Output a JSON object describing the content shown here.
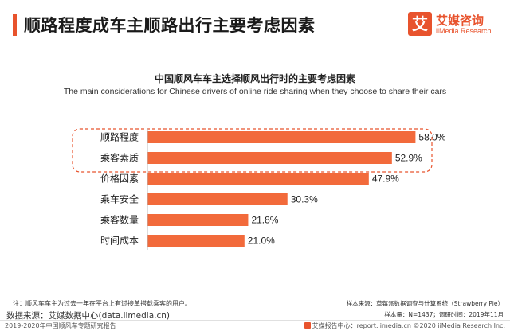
{
  "header": {
    "title": "顺路程度成车主顺路出行主要考虑因素",
    "logo_mark": "艾",
    "logo_cn": "艾媒咨询",
    "logo_en": "iiMedia Research",
    "accent_color": "#e8532d"
  },
  "chart_data": {
    "type": "bar",
    "orientation": "horizontal",
    "title": "中国顺风车车主选择顺风出行时的主要考虑因素",
    "subtitle": "The main considerations for Chinese drivers of online ride sharing  when they choose to share their cars",
    "categories": [
      "顺路程度",
      "乘客素质",
      "价格因素",
      "乘车安全",
      "乘客数量",
      "时间成本"
    ],
    "values": [
      58.0,
      52.9,
      47.9,
      30.3,
      21.8,
      21.0
    ],
    "value_labels": [
      "58.0%",
      "52.9%",
      "47.9%",
      "30.3%",
      "21.8%",
      "21.0%"
    ],
    "xlim": [
      0,
      60
    ],
    "bar_color": "#f26a3b",
    "highlight_color": "#e8532d",
    "highlighted_categories": [
      "顺路程度",
      "乘客素质"
    ],
    "grid": false,
    "legend": "none"
  },
  "notes": {
    "footnote": "注：顺风车车主为过去一年在平台上有过接单搭载乘客的用户。",
    "sample_source": "样本来源：草莓派数据调查与计算系统（Strawberry Pie）",
    "sample_info": "样本量：N=1437；调研时间：2019年11月",
    "data_source": "数据来源：艾媒数据中心(data.iimedia.cn)"
  },
  "footer": {
    "left": "2019-2020年中国顺风车专题研究报告",
    "right": "艾媒报告中心：report.iimedia.cn  ©2020  iiMedia Research  Inc."
  }
}
